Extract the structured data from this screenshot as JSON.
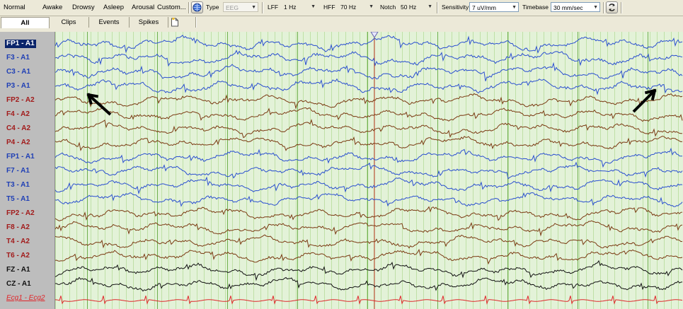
{
  "toolbar": {
    "modes": [
      "Normal",
      "Awake",
      "Drowsy",
      "Asleep",
      "Arousal",
      "Custom..."
    ],
    "type_label": "Type",
    "type_value": "EEG",
    "lff_label": "LFF",
    "lff_value": "1 Hz",
    "hff_label": "HFF",
    "hff_value": "70 Hz",
    "notch_label": "Notch",
    "notch_value": "50 Hz",
    "sensitivity_label": "Sensitivity",
    "sensitivity_value": "7 uV/mm",
    "timebase_label": "Timebase",
    "timebase_value": "30 mm/sec"
  },
  "tabs": [
    "All",
    "Clips",
    "Events",
    "Spikes"
  ],
  "channels": [
    {
      "label": "FP1 - A1",
      "color": "#1f3fb5",
      "trace": "#2a4fd0"
    },
    {
      "label": "F3 - A1",
      "color": "#1f3fb5",
      "trace": "#2a4fd0"
    },
    {
      "label": "C3 - A1",
      "color": "#1f3fb5",
      "trace": "#2a4fd0"
    },
    {
      "label": "P3 - A1",
      "color": "#1f3fb5",
      "trace": "#2a4fd0"
    },
    {
      "label": "FP2 - A2",
      "color": "#a21b1b",
      "trace": "#7a3a12"
    },
    {
      "label": "F4 - A2",
      "color": "#a21b1b",
      "trace": "#7a3a12"
    },
    {
      "label": "C4 - A2",
      "color": "#a21b1b",
      "trace": "#7a3a12"
    },
    {
      "label": "P4 - A2",
      "color": "#a21b1b",
      "trace": "#7a3a12"
    },
    {
      "label": "FP1 - A1",
      "color": "#1f3fb5",
      "trace": "#2a4fd0"
    },
    {
      "label": "F7 - A1",
      "color": "#1f3fb5",
      "trace": "#2a4fd0"
    },
    {
      "label": "T3 - A1",
      "color": "#1f3fb5",
      "trace": "#2a4fd0"
    },
    {
      "label": "T5 - A1",
      "color": "#1f3fb5",
      "trace": "#2a4fd0"
    },
    {
      "label": "FP2 - A2",
      "color": "#a21b1b",
      "trace": "#7a3a12"
    },
    {
      "label": "F8 - A2",
      "color": "#a21b1b",
      "trace": "#7a3a12"
    },
    {
      "label": "T4 - A2",
      "color": "#a21b1b",
      "trace": "#7a3a12"
    },
    {
      "label": "T6 - A2",
      "color": "#a21b1b",
      "trace": "#7a3a12"
    },
    {
      "label": "FZ - A1",
      "color": "#111111",
      "trace": "#111111"
    },
    {
      "label": "CZ - A1",
      "color": "#111111",
      "trace": "#111111"
    },
    {
      "label": "Ecg1 - Ecg2",
      "color": "#e0262a",
      "trace": "#e0262a"
    }
  ],
  "colors": {
    "plot_background": "#e3f2d8",
    "grid_minor": "#bfe0a6",
    "grid_major": "#6fb04e",
    "cursor": "#c0392b",
    "annotation_arrow": "#000000"
  }
}
